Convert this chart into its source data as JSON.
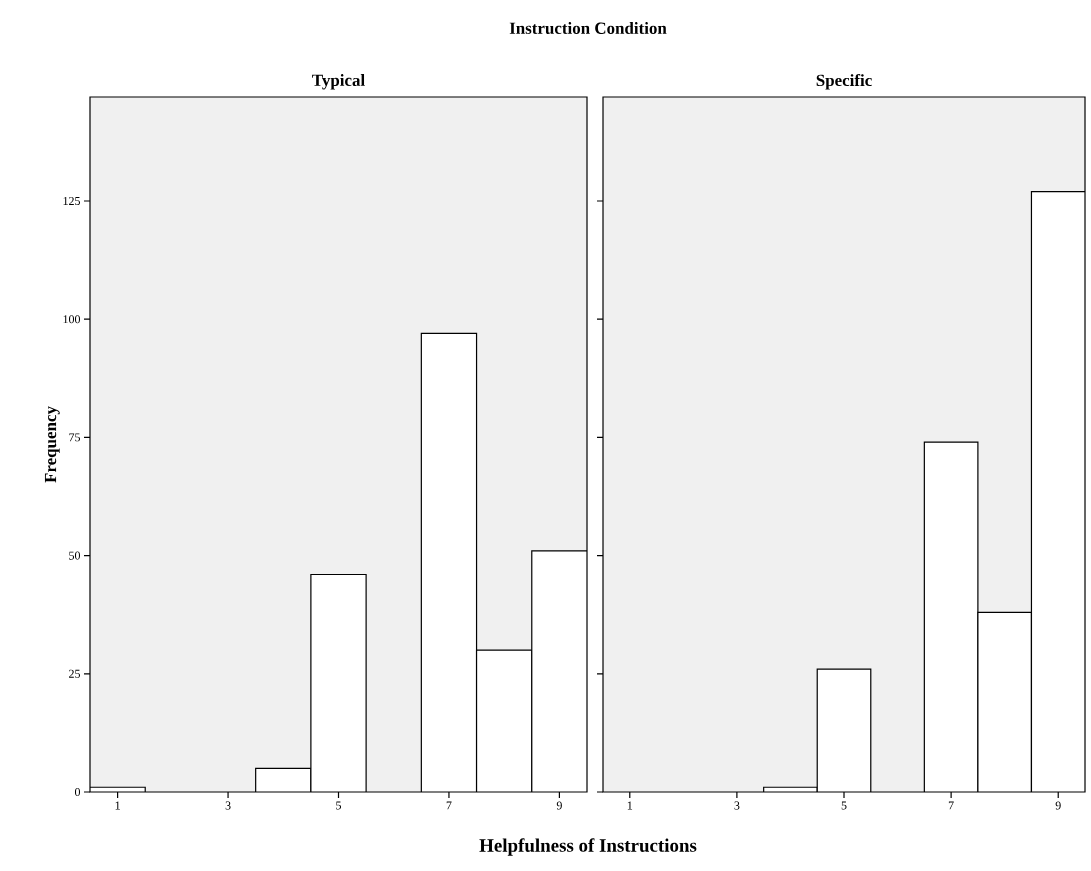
{
  "chart_data": [
    {
      "type": "histogram",
      "title": "Typical",
      "ylabel": "Frequency",
      "annotations": [
        "Instruction Condition"
      ],
      "bins": [
        0.5,
        1.5,
        2.5,
        3.5,
        4.5,
        5.5,
        6.5,
        7.5,
        8.5,
        9.5
      ],
      "values": [
        1,
        0,
        0,
        5,
        46,
        0,
        97,
        30,
        51
      ],
      "color": "#ffffff",
      "xlim": [
        0.5,
        9.5
      ],
      "ylim": [
        0,
        147
      ],
      "xticks": [
        1,
        3,
        5,
        7,
        9
      ],
      "yticks": [
        0,
        25,
        50,
        75,
        100,
        125
      ]
    },
    {
      "type": "histogram",
      "title": "Specific",
      "xlabel": "Helpfulness of Instructions",
      "bins": [
        0.5,
        1.5,
        2.5,
        3.5,
        4.5,
        5.5,
        6.5,
        7.5,
        8.5,
        9.5
      ],
      "values": [
        0,
        0,
        0,
        1,
        26,
        0,
        74,
        38,
        127
      ],
      "color": "#ffffff",
      "xlim": [
        0.5,
        9.5
      ],
      "ylim": [
        0,
        147
      ],
      "xticks": [
        1,
        3,
        5,
        7,
        9
      ],
      "yticks": [
        0,
        25,
        50,
        75,
        100,
        125
      ],
      "tick_labels": "x"
    }
  ]
}
